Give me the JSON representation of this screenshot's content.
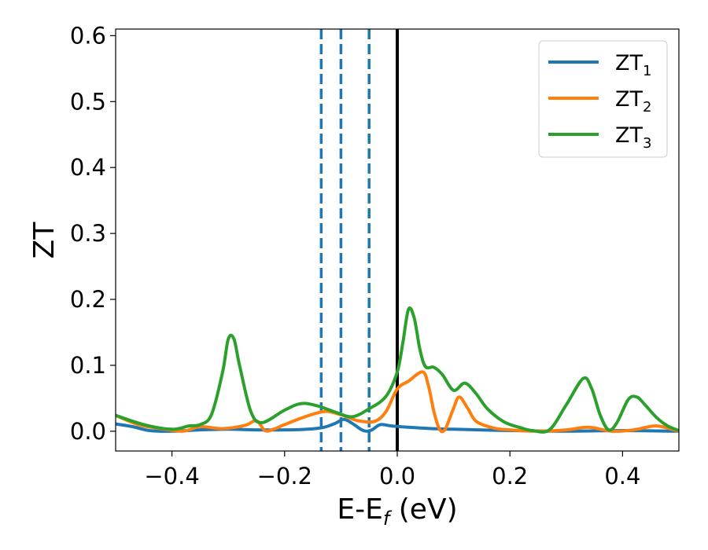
{
  "chart_data": {
    "type": "line",
    "xlabel": "E-E",
    "xlabel_sub": "f",
    "xlabel_unit": " (eV)",
    "ylabel": "ZT",
    "xlim": [
      -0.5,
      0.5
    ],
    "ylim": [
      -0.03,
      0.61
    ],
    "grid": false,
    "legend_position": "top-right",
    "x_ticks": [
      -0.4,
      -0.2,
      0.0,
      0.2,
      0.4
    ],
    "x_tick_labels": [
      "−0.4",
      "−0.2",
      "0.0",
      "0.2",
      "0.4"
    ],
    "y_ticks": [
      0.0,
      0.1,
      0.2,
      0.3,
      0.4,
      0.5,
      0.6
    ],
    "y_tick_labels": [
      "0.0",
      "0.1",
      "0.2",
      "0.3",
      "0.4",
      "0.5",
      "0.6"
    ],
    "vlines": [
      {
        "x": -0.135,
        "style": "dashed",
        "color": "#1f77b4"
      },
      {
        "x": -0.1,
        "style": "dashed",
        "color": "#1f77b4"
      },
      {
        "x": -0.05,
        "style": "dashed",
        "color": "#1f77b4"
      },
      {
        "x": 0.0,
        "style": "solid",
        "color": "#000000"
      }
    ],
    "series": [
      {
        "name": "ZT",
        "name_sub": "1",
        "color": "#1f77b4",
        "points": [
          [
            -0.5,
            0.011
          ],
          [
            -0.47,
            0.007
          ],
          [
            -0.44,
            0.001
          ],
          [
            -0.4,
            0.0
          ],
          [
            -0.35,
            0.002
          ],
          [
            -0.3,
            0.003
          ],
          [
            -0.25,
            0.002
          ],
          [
            -0.2,
            0.002
          ],
          [
            -0.16,
            0.003
          ],
          [
            -0.13,
            0.006
          ],
          [
            -0.11,
            0.012
          ],
          [
            -0.095,
            0.018
          ],
          [
            -0.08,
            0.012
          ],
          [
            -0.065,
            0.003
          ],
          [
            -0.055,
            0.0
          ],
          [
            -0.045,
            0.002
          ],
          [
            -0.03,
            0.01
          ],
          [
            -0.01,
            0.008
          ],
          [
            0.02,
            0.006
          ],
          [
            0.06,
            0.004
          ],
          [
            0.1,
            0.003
          ],
          [
            0.2,
            0.001
          ],
          [
            0.3,
            0.0
          ],
          [
            0.4,
            0.001
          ],
          [
            0.5,
            0.0
          ]
        ]
      },
      {
        "name": "ZT",
        "name_sub": "2",
        "color": "#ff7f0e",
        "points": [
          [
            -0.5,
            0.024
          ],
          [
            -0.46,
            0.01
          ],
          [
            -0.42,
            0.004
          ],
          [
            -0.38,
            0.0
          ],
          [
            -0.35,
            0.007
          ],
          [
            -0.31,
            0.004
          ],
          [
            -0.27,
            0.009
          ],
          [
            -0.25,
            0.016
          ],
          [
            -0.235,
            0.001
          ],
          [
            -0.22,
            0.003
          ],
          [
            -0.2,
            0.01
          ],
          [
            -0.17,
            0.02
          ],
          [
            -0.13,
            0.03
          ],
          [
            -0.1,
            0.025
          ],
          [
            -0.07,
            0.016
          ],
          [
            -0.04,
            0.015
          ],
          [
            -0.02,
            0.03
          ],
          [
            0.0,
            0.064
          ],
          [
            0.02,
            0.076
          ],
          [
            0.045,
            0.09
          ],
          [
            0.055,
            0.07
          ],
          [
            0.065,
            0.03
          ],
          [
            0.075,
            0.003
          ],
          [
            0.085,
            0.003
          ],
          [
            0.1,
            0.035
          ],
          [
            0.11,
            0.052
          ],
          [
            0.125,
            0.035
          ],
          [
            0.14,
            0.015
          ],
          [
            0.17,
            0.005
          ],
          [
            0.2,
            0.002
          ],
          [
            0.25,
            0.0
          ],
          [
            0.3,
            0.002
          ],
          [
            0.34,
            0.006
          ],
          [
            0.38,
            0.0
          ],
          [
            0.42,
            0.002
          ],
          [
            0.46,
            0.008
          ],
          [
            0.5,
            0.0
          ]
        ]
      },
      {
        "name": "ZT",
        "name_sub": "3",
        "color": "#2ca02c",
        "points": [
          [
            -0.5,
            0.024
          ],
          [
            -0.45,
            0.01
          ],
          [
            -0.4,
            0.003
          ],
          [
            -0.37,
            0.008
          ],
          [
            -0.35,
            0.01
          ],
          [
            -0.33,
            0.025
          ],
          [
            -0.31,
            0.09
          ],
          [
            -0.3,
            0.14
          ],
          [
            -0.29,
            0.14
          ],
          [
            -0.28,
            0.1
          ],
          [
            -0.26,
            0.03
          ],
          [
            -0.24,
            0.013
          ],
          [
            -0.2,
            0.032
          ],
          [
            -0.17,
            0.042
          ],
          [
            -0.14,
            0.038
          ],
          [
            -0.11,
            0.029
          ],
          [
            -0.08,
            0.022
          ],
          [
            -0.05,
            0.034
          ],
          [
            -0.02,
            0.053
          ],
          [
            0.0,
            0.09
          ],
          [
            0.01,
            0.135
          ],
          [
            0.02,
            0.185
          ],
          [
            0.03,
            0.172
          ],
          [
            0.04,
            0.125
          ],
          [
            0.05,
            0.098
          ],
          [
            0.065,
            0.097
          ],
          [
            0.08,
            0.086
          ],
          [
            0.1,
            0.062
          ],
          [
            0.12,
            0.073
          ],
          [
            0.14,
            0.057
          ],
          [
            0.16,
            0.034
          ],
          [
            0.19,
            0.014
          ],
          [
            0.22,
            0.005
          ],
          [
            0.24,
            0.001
          ],
          [
            0.27,
            0.002
          ],
          [
            0.3,
            0.04
          ],
          [
            0.33,
            0.08
          ],
          [
            0.345,
            0.065
          ],
          [
            0.36,
            0.025
          ],
          [
            0.375,
            0.002
          ],
          [
            0.39,
            0.013
          ],
          [
            0.41,
            0.048
          ],
          [
            0.425,
            0.052
          ],
          [
            0.44,
            0.04
          ],
          [
            0.46,
            0.021
          ],
          [
            0.48,
            0.008
          ],
          [
            0.5,
            0.001
          ]
        ]
      }
    ]
  }
}
